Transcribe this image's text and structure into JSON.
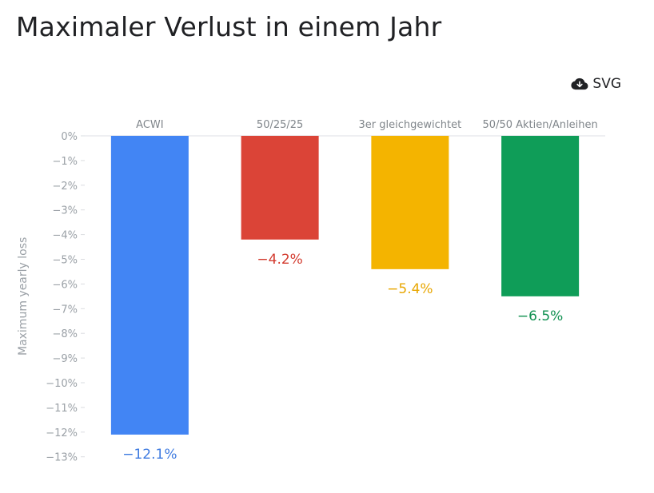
{
  "chart_data": {
    "type": "bar",
    "title": "Maximaler Verlust in einem Jahr",
    "ylabel": "Maximum yearly loss",
    "xlabel": "",
    "ylim": [
      -13,
      0
    ],
    "yticks": [
      0,
      -1,
      -2,
      -3,
      -4,
      -5,
      -6,
      -7,
      -8,
      -9,
      -10,
      -11,
      -12,
      -13
    ],
    "tick_suffix": "%",
    "categories": [
      "ACWI",
      "50/25/25",
      "3er gleichgewichtet",
      "50/50 Aktien/Anleihen"
    ],
    "values": [
      -12.1,
      -4.2,
      -5.4,
      -6.5
    ],
    "value_labels": [
      "-12.1%",
      "-4.2%",
      "-5.4%",
      "-6.5%"
    ],
    "colors": [
      "#4285f4",
      "#db4437",
      "#f4b400",
      "#0f9d58"
    ],
    "label_colors": [
      "#3f7be0",
      "#d33b2f",
      "#e8a600",
      "#0f9050"
    ],
    "category_labels_position": "top",
    "grid": false,
    "legend": "none"
  },
  "toolbar": {
    "download_label": "SVG",
    "download_icon": "cloud-download-icon"
  }
}
